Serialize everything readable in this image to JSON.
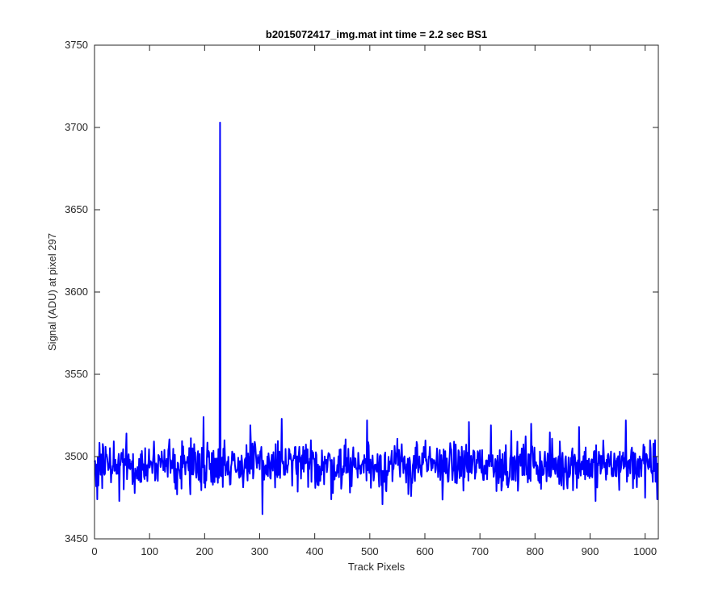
{
  "chart_data": {
    "type": "line",
    "title": "b2015072417_img.mat int time = 2.2 sec   BS1",
    "xlabel": "Track Pixels",
    "ylabel": "Signal (ADU) at pixel 297",
    "xlim": [
      0,
      1024
    ],
    "ylim": [
      3450,
      3750
    ],
    "xticks": [
      0,
      100,
      200,
      300,
      400,
      500,
      600,
      700,
      800,
      900,
      1000
    ],
    "yticks": [
      3450,
      3500,
      3550,
      3600,
      3650,
      3700,
      3750
    ],
    "grid": false,
    "line_color": "#0000ff",
    "noise_model": {
      "baseline": 3495,
      "amplitude": 7,
      "n_points": 1024,
      "min_value": 3470
    },
    "notable_points": [
      {
        "x": 5,
        "y": 3474
      },
      {
        "x": 45,
        "y": 3473
      },
      {
        "x": 150,
        "y": 3477
      },
      {
        "x": 198,
        "y": 3524
      },
      {
        "x": 226,
        "y": 3487
      },
      {
        "x": 228,
        "y": 3703
      },
      {
        "x": 230,
        "y": 3488
      },
      {
        "x": 283,
        "y": 3519
      },
      {
        "x": 305,
        "y": 3465
      },
      {
        "x": 340,
        "y": 3523
      },
      {
        "x": 430,
        "y": 3474
      },
      {
        "x": 495,
        "y": 3522
      },
      {
        "x": 523,
        "y": 3471
      },
      {
        "x": 575,
        "y": 3476
      },
      {
        "x": 680,
        "y": 3521
      },
      {
        "x": 720,
        "y": 3519
      },
      {
        "x": 730,
        "y": 3479
      },
      {
        "x": 793,
        "y": 3520
      },
      {
        "x": 880,
        "y": 3518
      },
      {
        "x": 910,
        "y": 3473
      },
      {
        "x": 965,
        "y": 3522
      },
      {
        "x": 1000,
        "y": 3475
      },
      {
        "x": 1010,
        "y": 3505
      },
      {
        "x": 1018,
        "y": 3510
      },
      {
        "x": 1022,
        "y": 3474
      }
    ]
  }
}
